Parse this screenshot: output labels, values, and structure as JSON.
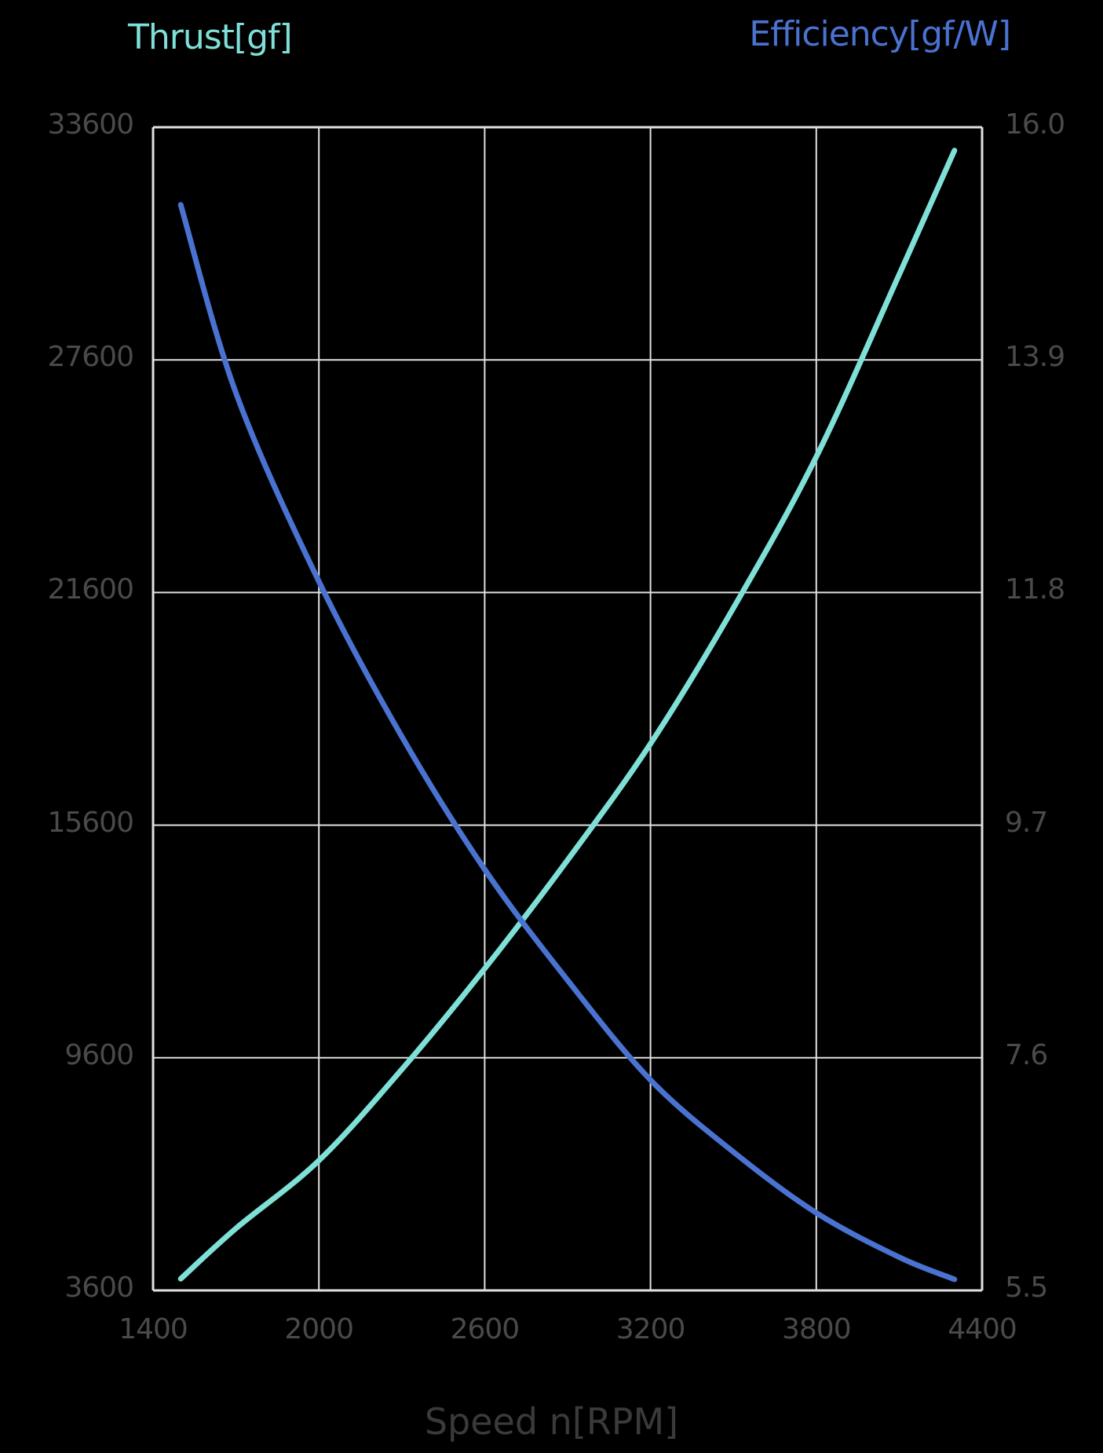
{
  "chart_data": {
    "type": "line",
    "title": "",
    "xlabel": "Speed n[RPM]",
    "ylabel": "Thrust[gf]",
    "ylabel_right": "Efficiency[gf/W]",
    "xlim": [
      1400,
      4400
    ],
    "ylim": [
      3600,
      33600
    ],
    "ylim_right": [
      5.5,
      16.0
    ],
    "x_ticks": [
      "1400",
      "2000",
      "2600",
      "3200",
      "3800",
      "4400"
    ],
    "y_ticks_left": [
      "33600",
      "27600",
      "21600",
      "15600",
      "9600",
      "3600"
    ],
    "y_ticks_right": [
      "16.0",
      "13.9",
      "11.8",
      "9.7",
      "7.6",
      "5.5"
    ],
    "grid": true,
    "legend": "axis titles colored per series",
    "x": [
      1500,
      1700,
      2000,
      2300,
      2600,
      2900,
      3200,
      3500,
      3800,
      4100,
      4300
    ],
    "series": [
      {
        "name": "Thrust[gf]",
        "axis": "left",
        "color": "#7fe0d8",
        "values": [
          3900,
          5200,
          6950,
          9300,
          11900,
          14700,
          17700,
          21200,
          25100,
          29800,
          33000
        ]
      },
      {
        "name": "Efficiency[gf/W]",
        "axis": "right",
        "color": "#4a72d0",
        "values": [
          15.3,
          13.6,
          11.9,
          10.5,
          9.3,
          8.3,
          7.4,
          6.75,
          6.2,
          5.8,
          5.6
        ]
      }
    ]
  },
  "labels": {
    "left_title": "Thrust[gf]",
    "right_title": "Efficiency[gf/W]",
    "x_title": "Speed n[RPM]"
  },
  "colors": {
    "thrust": "#7fe0d8",
    "efficiency": "#4a72d0",
    "grid": "#e0e0e0",
    "tick_text": "#4a4a4a"
  }
}
